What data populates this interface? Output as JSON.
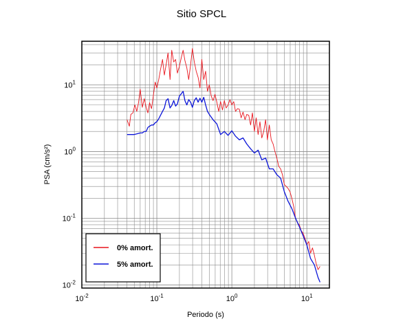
{
  "chart_data": {
    "type": "line",
    "title": "Sitio SPCL",
    "xlabel": "Periodo (s)",
    "ylabel": "PSA (cm/s²)",
    "x_scale": "log",
    "y_scale": "log",
    "xlim": [
      0.01,
      20
    ],
    "ylim": [
      0.009,
      45
    ],
    "grid": true,
    "x_ticks": [
      {
        "value": 0.01,
        "base": "10",
        "exp": "-2"
      },
      {
        "value": 0.1,
        "base": "10",
        "exp": "-1"
      },
      {
        "value": 1,
        "base": "10",
        "exp": "0"
      },
      {
        "value": 10,
        "base": "10",
        "exp": "1"
      }
    ],
    "y_ticks": [
      {
        "value": 0.01,
        "base": "10",
        "exp": "-2"
      },
      {
        "value": 0.1,
        "base": "10",
        "exp": "-1"
      },
      {
        "value": 1,
        "base": "10",
        "exp": "0"
      },
      {
        "value": 10,
        "base": "10",
        "exp": "1"
      }
    ],
    "legend_position": "bottom-left",
    "series": [
      {
        "name": "0% amort.",
        "color": "#e8141c",
        "x": [
          0.04,
          0.043,
          0.045,
          0.048,
          0.051,
          0.054,
          0.057,
          0.06,
          0.064,
          0.068,
          0.072,
          0.076,
          0.08,
          0.085,
          0.09,
          0.095,
          0.1,
          0.106,
          0.112,
          0.119,
          0.126,
          0.133,
          0.141,
          0.15,
          0.158,
          0.168,
          0.178,
          0.188,
          0.2,
          0.211,
          0.224,
          0.237,
          0.251,
          0.266,
          0.282,
          0.298,
          0.316,
          0.335,
          0.355,
          0.376,
          0.398,
          0.422,
          0.447,
          0.473,
          0.501,
          0.531,
          0.562,
          0.596,
          0.631,
          0.668,
          0.708,
          0.75,
          0.794,
          0.841,
          0.891,
          0.944,
          1.0,
          1.06,
          1.12,
          1.19,
          1.26,
          1.33,
          1.41,
          1.5,
          1.58,
          1.68,
          1.78,
          1.88,
          2.0,
          2.11,
          2.24,
          2.37,
          2.51,
          2.66,
          2.82,
          2.98,
          3.16,
          3.35,
          3.55,
          3.76,
          3.98,
          4.22,
          4.47,
          4.73,
          5.01,
          5.31,
          5.62,
          5.96,
          6.31,
          6.68,
          7.08,
          7.5,
          7.94,
          8.41,
          8.91,
          9.44,
          10.0,
          10.6,
          11.2,
          11.9,
          12.6,
          13.3,
          14.1,
          15.0
        ],
        "values": [
          3.0,
          2.4,
          3.6,
          3.8,
          5.0,
          4.0,
          5.4,
          8.6,
          4.6,
          6.2,
          4.6,
          3.8,
          5.4,
          4.4,
          7.0,
          11.0,
          9.0,
          12.0,
          17.0,
          24.0,
          14.0,
          20.0,
          30.0,
          12.0,
          33.0,
          22.0,
          24.0,
          15.0,
          19.0,
          25.0,
          33.0,
          23.0,
          18.0,
          12.0,
          20.0,
          35.0,
          22.0,
          16.0,
          13.0,
          9.0,
          24.0,
          12.0,
          16.0,
          8.0,
          10.0,
          6.8,
          5.8,
          7.2,
          5.5,
          4.0,
          5.6,
          4.2,
          5.8,
          4.5,
          5.0,
          6.0,
          5.0,
          5.6,
          4.0,
          4.4,
          4.3,
          3.2,
          3.9,
          3.0,
          3.6,
          3.5,
          2.5,
          3.8,
          2.0,
          3.2,
          1.8,
          2.8,
          1.6,
          2.0,
          3.0,
          1.5,
          2.5,
          1.5,
          1.3,
          1.0,
          0.8,
          0.6,
          0.55,
          0.45,
          0.32,
          0.3,
          0.28,
          0.25,
          0.2,
          0.15,
          0.1,
          0.085,
          0.08,
          0.065,
          0.06,
          0.05,
          0.04,
          0.045,
          0.03,
          0.036,
          0.028,
          0.021,
          0.017,
          0.019
        ]
      },
      {
        "name": "5% amort.",
        "color": "#0a14d8",
        "x": [
          0.04,
          0.045,
          0.05,
          0.055,
          0.06,
          0.064,
          0.068,
          0.072,
          0.076,
          0.08,
          0.085,
          0.09,
          0.095,
          0.1,
          0.106,
          0.112,
          0.119,
          0.126,
          0.133,
          0.141,
          0.15,
          0.158,
          0.168,
          0.178,
          0.188,
          0.2,
          0.211,
          0.224,
          0.237,
          0.251,
          0.266,
          0.282,
          0.298,
          0.316,
          0.335,
          0.355,
          0.376,
          0.398,
          0.422,
          0.447,
          0.473,
          0.501,
          0.562,
          0.631,
          0.708,
          0.794,
          0.891,
          1.0,
          1.12,
          1.26,
          1.41,
          1.58,
          1.78,
          2.0,
          2.24,
          2.51,
          2.82,
          3.16,
          3.55,
          3.98,
          4.47,
          5.01,
          5.62,
          6.31,
          7.08,
          7.94,
          8.91,
          10.0,
          11.2,
          12.6,
          14.1,
          15.0
        ],
        "values": [
          1.8,
          1.8,
          1.8,
          1.85,
          1.9,
          1.9,
          2.0,
          2.0,
          2.3,
          2.4,
          2.5,
          2.5,
          2.7,
          2.8,
          3.1,
          3.5,
          4.0,
          4.5,
          5.8,
          6.2,
          4.5,
          4.9,
          5.8,
          4.8,
          5.2,
          6.8,
          7.3,
          8.0,
          5.8,
          5.0,
          6.0,
          5.5,
          4.6,
          5.8,
          6.4,
          5.5,
          6.3,
          5.5,
          6.5,
          5.0,
          4.0,
          3.6,
          3.0,
          2.6,
          1.8,
          2.0,
          1.75,
          2.05,
          1.7,
          1.5,
          1.6,
          1.3,
          1.1,
          0.95,
          1.05,
          0.75,
          0.8,
          0.55,
          0.55,
          0.45,
          0.4,
          0.25,
          0.18,
          0.14,
          0.1,
          0.075,
          0.055,
          0.04,
          0.025,
          0.02,
          0.013,
          0.011
        ]
      }
    ]
  }
}
